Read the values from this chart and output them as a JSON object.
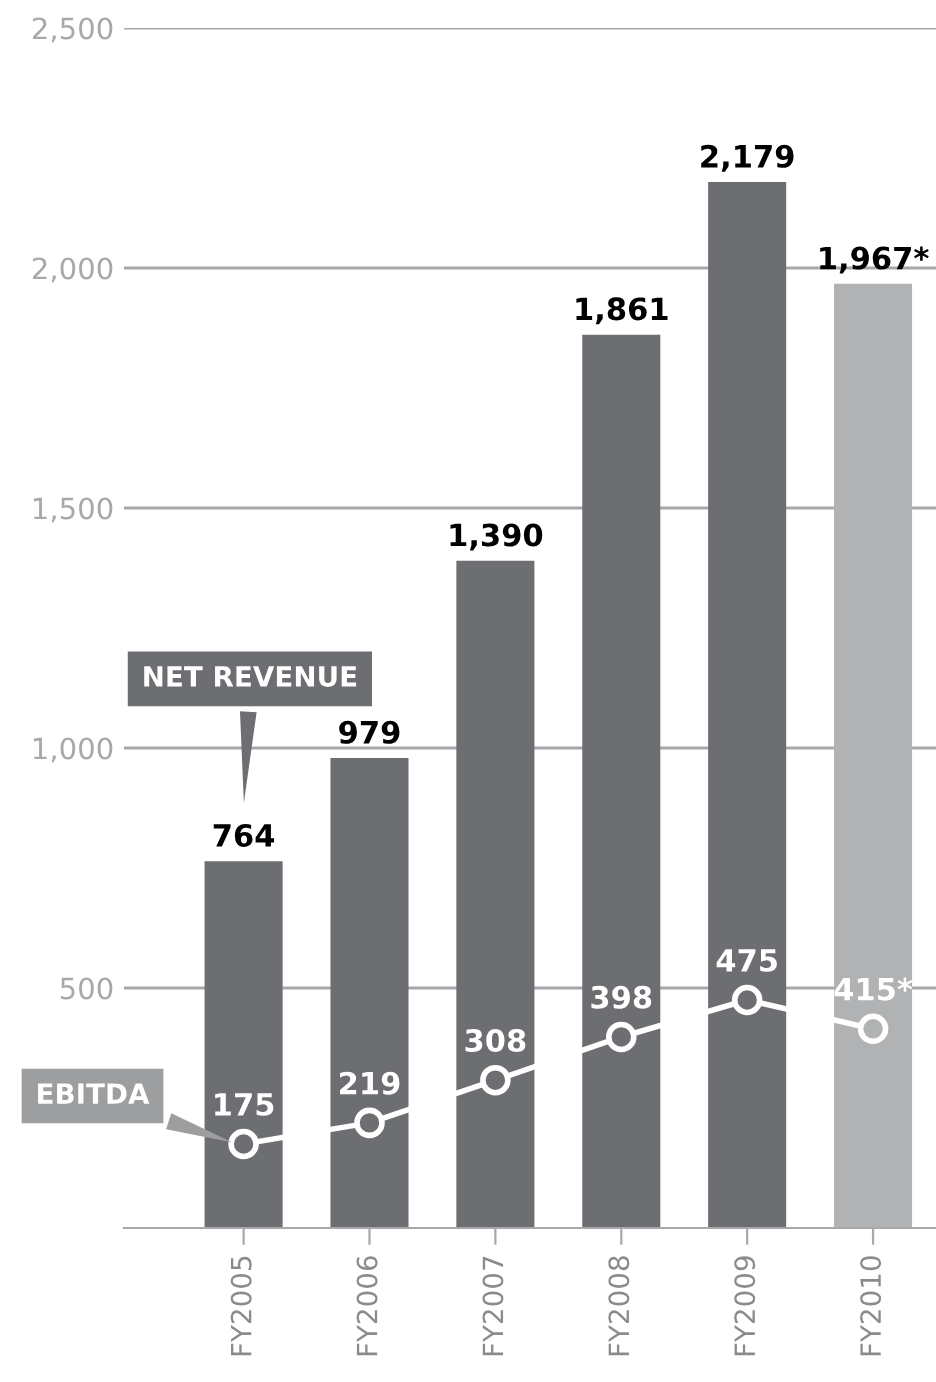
{
  "chart_data": {
    "type": "bar",
    "categories": [
      "FY2005",
      "FY2006",
      "FY2007",
      "FY2008",
      "FY2009",
      "FY2010"
    ],
    "series": [
      {
        "name": "NET REVENUE",
        "colors": [
          "#6d6e71",
          "#6d6e71",
          "#6d6e71",
          "#6d6e71",
          "#6d6e71",
          "#b1b2b4"
        ],
        "values": [
          764,
          979,
          1390,
          1861,
          2179,
          1967
        ],
        "value_labels": [
          "764",
          "979",
          "1,390",
          "1,861",
          "2,179",
          "1,967*"
        ]
      },
      {
        "name": "EBITDA",
        "type": "line",
        "color": "#ffffff",
        "values": [
          175,
          219,
          308,
          398,
          475,
          415
        ],
        "value_labels": [
          "175",
          "219",
          "308",
          "398",
          "475",
          "415*"
        ],
        "marker": "circle",
        "line_style": "solid"
      }
    ],
    "ylim": [
      0,
      2500
    ],
    "yticks": [
      {
        "value": 500,
        "label": "500"
      },
      {
        "value": 1000,
        "label": "1,000"
      },
      {
        "value": 1500,
        "label": "1,500"
      },
      {
        "value": 2000,
        "label": "2,000"
      },
      {
        "value": 2500,
        "label": "2,500"
      }
    ],
    "grid": "y",
    "legend": false
  }
}
